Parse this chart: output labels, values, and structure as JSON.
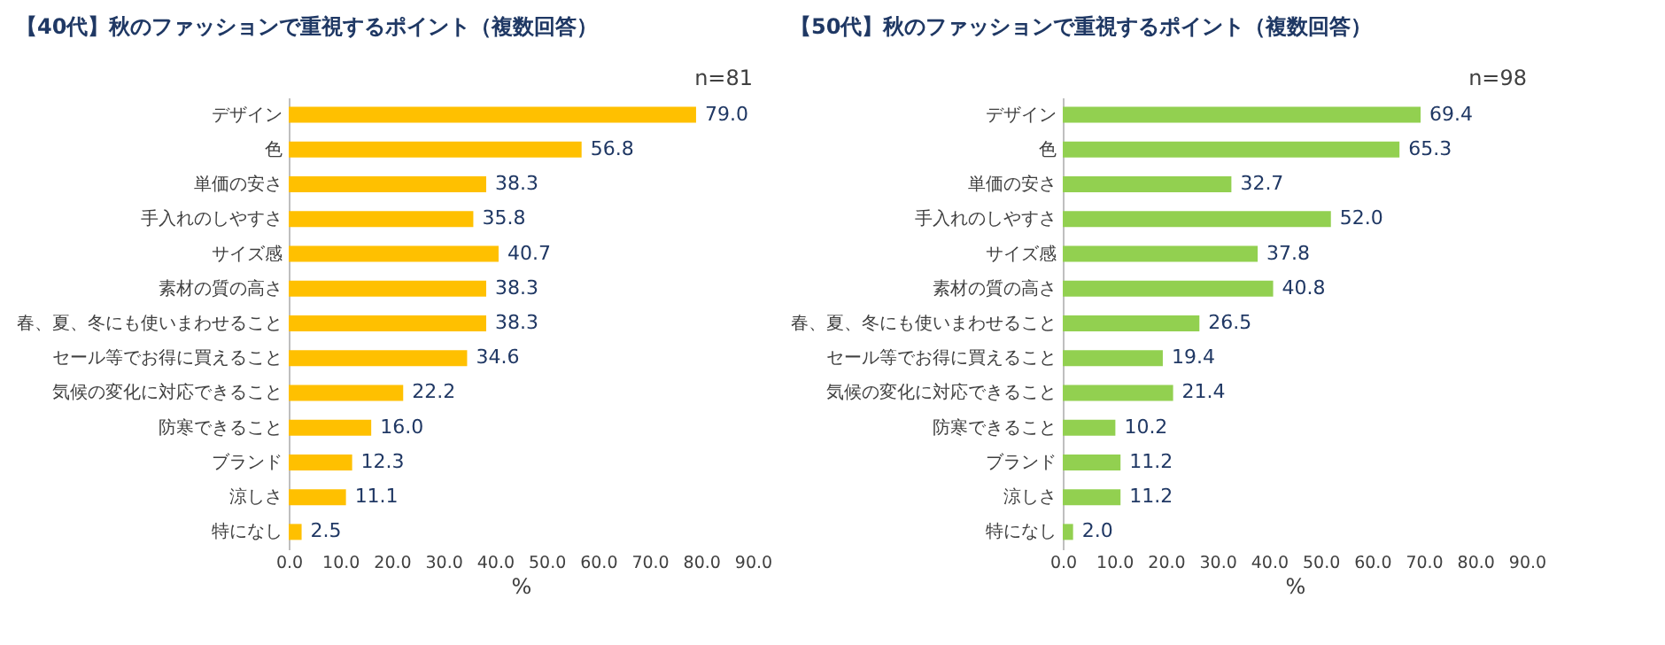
{
  "chart_data": [
    {
      "type": "bar",
      "orientation": "horizontal",
      "title": "【40代】秋のファッションで重視するポイント（複数回答）",
      "annotations": [
        "n=81"
      ],
      "xlabel": "%",
      "color": "#ffc000",
      "categories": [
        "デザイン",
        "色",
        "単価の安さ",
        "手入れのしやすさ",
        "サイズ感",
        "素材の質の高さ",
        "春、夏、冬にも使いまわせること",
        "セール等でお得に買えること",
        "気候の変化に対応できること",
        "防寒できること",
        "ブランド",
        "涼しさ",
        "特になし"
      ],
      "values": [
        79.0,
        56.8,
        38.3,
        35.8,
        40.7,
        38.3,
        38.3,
        34.6,
        22.2,
        16.0,
        12.3,
        11.1,
        2.5
      ],
      "value_labels": [
        "79.0",
        "56.8",
        "38.3",
        "35.8",
        "40.7",
        "38.3",
        "38.3",
        "34.6",
        "22.2",
        "16.0",
        "12.3",
        "11.1",
        "2.5"
      ],
      "xlim": [
        0,
        90
      ],
      "xticks": [
        {
          "value": 0,
          "label": "0.0"
        },
        {
          "value": 10,
          "label": "10.0"
        },
        {
          "value": 20,
          "label": "20.0"
        },
        {
          "value": 30,
          "label": "30.0"
        },
        {
          "value": 40,
          "label": "40.0"
        },
        {
          "value": 50,
          "label": "50.0"
        },
        {
          "value": 60,
          "label": "60.0"
        },
        {
          "value": 70,
          "label": "70.0"
        },
        {
          "value": 80,
          "label": "80.0"
        },
        {
          "value": 90,
          "label": "90.0"
        }
      ]
    },
    {
      "type": "bar",
      "orientation": "horizontal",
      "title": "【50代】秋のファッションで重視するポイント（複数回答）",
      "annotations": [
        "n=98"
      ],
      "xlabel": "%",
      "color": "#92d050",
      "categories": [
        "デザイン",
        "色",
        "単価の安さ",
        "手入れのしやすさ",
        "サイズ感",
        "素材の質の高さ",
        "春、夏、冬にも使いまわせること",
        "セール等でお得に買えること",
        "気候の変化に対応できること",
        "防寒できること",
        "ブランド",
        "涼しさ",
        "特になし"
      ],
      "values": [
        69.4,
        65.3,
        32.7,
        52.0,
        37.8,
        40.8,
        26.5,
        19.4,
        21.4,
        10.2,
        11.2,
        11.2,
        2.0
      ],
      "value_labels": [
        "69.4",
        "65.3",
        "32.7",
        "52.0",
        "37.8",
        "40.8",
        "26.5",
        "19.4",
        "21.4",
        "10.2",
        "11.2",
        "11.2",
        "2.0"
      ],
      "xlim": [
        0,
        90
      ],
      "xticks": [
        {
          "value": 0,
          "label": "0.0"
        },
        {
          "value": 10,
          "label": "10.0"
        },
        {
          "value": 20,
          "label": "20.0"
        },
        {
          "value": 30,
          "label": "30.0"
        },
        {
          "value": 40,
          "label": "40.0"
        },
        {
          "value": 50,
          "label": "50.0"
        },
        {
          "value": 60,
          "label": "60.0"
        },
        {
          "value": 70,
          "label": "70.0"
        },
        {
          "value": 80,
          "label": "80.0"
        },
        {
          "value": 90,
          "label": "90.0"
        }
      ]
    }
  ]
}
